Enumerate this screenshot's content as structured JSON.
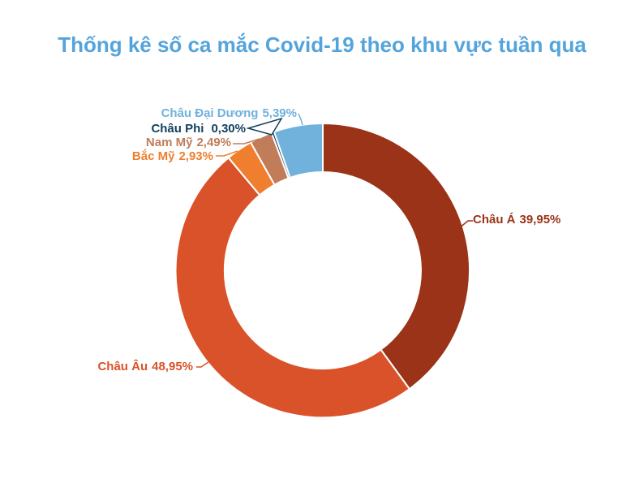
{
  "header": {
    "title": "Thống kê số ca mắc Covid-19 theo khu vực tuần qua"
  },
  "colors": {
    "title": "#54A4DB",
    "background": "#FFFFFF",
    "slice_border": "#FFFFFF"
  },
  "chart_data": {
    "type": "pie",
    "subtype": "donut",
    "title": "Thống kê số ca mắc Covid-19 theo khu vực tuần qua",
    "unit": "%",
    "legend_position": "none",
    "label_style": "outside-with-leader-lines",
    "start_angle_deg": 0,
    "direction": "clockwise",
    "categories": [
      "Châu Á",
      "Châu Âu",
      "Bắc Mỹ",
      "Nam Mỹ",
      "Châu Phi",
      "Châu Đại Dương"
    ],
    "values": [
      39.95,
      48.95,
      2.93,
      2.49,
      0.3,
      5.39
    ],
    "slices": [
      {
        "id": "chau-a",
        "name": "Châu Á",
        "value": 39.95,
        "pct_label": "39,95%",
        "color": "#9A3318"
      },
      {
        "id": "chau-au",
        "name": "Châu Âu",
        "value": 48.95,
        "pct_label": "48,95%",
        "color": "#D9522A"
      },
      {
        "id": "bac-my",
        "name": "Bắc Mỹ",
        "value": 2.93,
        "pct_label": "2,93%",
        "color": "#EF7E2E"
      },
      {
        "id": "nam-my",
        "name": "Nam Mỹ",
        "value": 2.49,
        "pct_label": "2,49%",
        "color": "#C17C5A"
      },
      {
        "id": "chau-phi",
        "name": "Châu Phi",
        "value": 0.3,
        "pct_label": "0,30%",
        "color": "#113F5C"
      },
      {
        "id": "chau-dai-duong",
        "name": "Châu Đại Dương",
        "value": 5.39,
        "pct_label": "5,39%",
        "color": "#70B2DB"
      }
    ]
  }
}
